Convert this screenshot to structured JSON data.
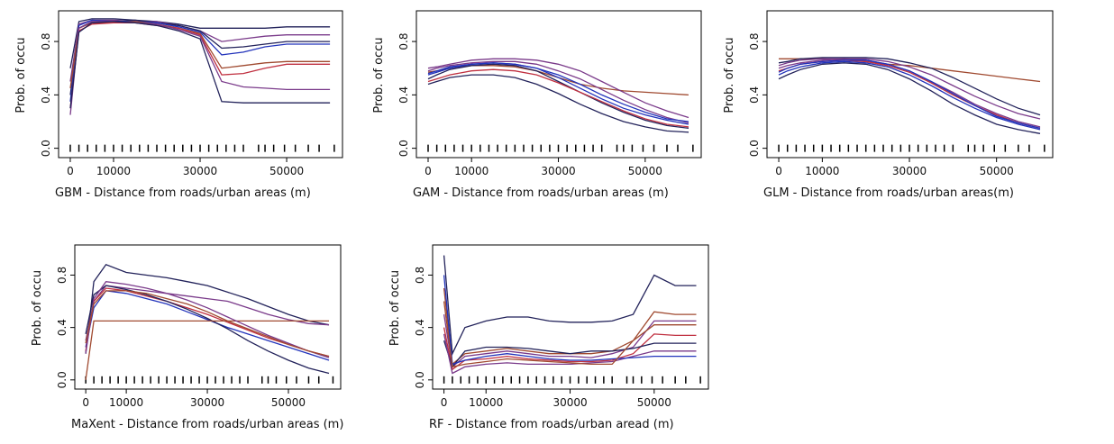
{
  "chart_data": [
    {
      "type": "line",
      "x_label": "GBM - Distance from roads/urban areas (m)",
      "y_label": "Prob. of occu",
      "x": [
        0,
        2000,
        5000,
        10000,
        15000,
        20000,
        25000,
        30000,
        35000,
        40000,
        45000,
        50000,
        55000,
        60000
      ],
      "xlim": [
        -2700,
        62900
      ],
      "ylim": [
        -0.07,
        1.03
      ],
      "xticks": [
        0,
        10000,
        30000,
        50000
      ],
      "yticks": [
        {
          "value": 0,
          "label": "0.0"
        },
        {
          "value": 0.4,
          "label": "0.4"
        },
        {
          "value": 0.8,
          "label": "0.8"
        }
      ],
      "rug": [
        0,
        2000,
        4000,
        6000,
        8000,
        10000,
        12000,
        14000,
        16000,
        18000,
        20000,
        22000,
        24000,
        26000,
        28000,
        30000,
        32000,
        34000,
        36000,
        38000,
        40000,
        43500,
        45000,
        47000,
        49500,
        52000,
        55000,
        57500,
        61000
      ],
      "series": [
        {
          "color": "#22225a",
          "values": [
            0.6,
            0.95,
            0.97,
            0.97,
            0.96,
            0.95,
            0.93,
            0.9,
            0.9,
            0.9,
            0.9,
            0.91,
            0.91,
            0.91
          ]
        },
        {
          "color": "#7a3a8a",
          "values": [
            0.5,
            0.93,
            0.96,
            0.96,
            0.95,
            0.95,
            0.92,
            0.88,
            0.8,
            0.82,
            0.84,
            0.85,
            0.85,
            0.85
          ]
        },
        {
          "color": "#22225a",
          "values": [
            0.4,
            0.9,
            0.95,
            0.95,
            0.96,
            0.94,
            0.92,
            0.88,
            0.75,
            0.76,
            0.78,
            0.8,
            0.8,
            0.8
          ]
        },
        {
          "color": "#2233bb",
          "values": [
            0.35,
            0.92,
            0.96,
            0.95,
            0.95,
            0.94,
            0.91,
            0.87,
            0.7,
            0.72,
            0.76,
            0.78,
            0.78,
            0.78
          ]
        },
        {
          "color": "#a04a30",
          "values": [
            0.45,
            0.9,
            0.94,
            0.94,
            0.95,
            0.93,
            0.9,
            0.86,
            0.6,
            0.62,
            0.64,
            0.65,
            0.65,
            0.65
          ]
        },
        {
          "color": "#c03040",
          "values": [
            0.3,
            0.88,
            0.93,
            0.94,
            0.94,
            0.92,
            0.9,
            0.85,
            0.55,
            0.56,
            0.6,
            0.63,
            0.63,
            0.63
          ]
        },
        {
          "color": "#7a3a8a",
          "values": [
            0.25,
            0.9,
            0.95,
            0.95,
            0.94,
            0.93,
            0.89,
            0.84,
            0.5,
            0.46,
            0.45,
            0.44,
            0.44,
            0.44
          ]
        },
        {
          "color": "#22225a",
          "values": [
            0.3,
            0.87,
            0.94,
            0.95,
            0.94,
            0.92,
            0.88,
            0.82,
            0.35,
            0.34,
            0.34,
            0.34,
            0.34,
            0.34
          ]
        }
      ]
    },
    {
      "type": "line",
      "x_label": "GAM - Distance from roads/urban areas (m)",
      "y_label": "Prob. of occu",
      "x": [
        0,
        2000,
        5000,
        10000,
        15000,
        20000,
        25000,
        30000,
        35000,
        40000,
        45000,
        50000,
        55000,
        60000
      ],
      "xlim": [
        -2700,
        62900
      ],
      "ylim": [
        -0.07,
        1.03
      ],
      "xticks": [
        0,
        10000,
        30000,
        50000
      ],
      "yticks": [
        {
          "value": 0,
          "label": "0.0"
        },
        {
          "value": 0.4,
          "label": "0.4"
        },
        {
          "value": 0.8,
          "label": "0.8"
        }
      ],
      "rug": [
        0,
        2000,
        4000,
        6000,
        8000,
        10000,
        12000,
        14000,
        16000,
        18000,
        20000,
        22000,
        24000,
        26000,
        28000,
        30000,
        32000,
        34000,
        36000,
        38000,
        40000,
        43500,
        45000,
        47000,
        49500,
        52000,
        55000,
        57500,
        61000
      ],
      "series": [
        {
          "color": "#a04a30",
          "values": [
            0.57,
            0.58,
            0.6,
            0.62,
            0.62,
            0.61,
            0.58,
            0.53,
            0.48,
            0.45,
            0.43,
            0.42,
            0.41,
            0.4
          ]
        },
        {
          "color": "#2233bb",
          "values": [
            0.55,
            0.57,
            0.6,
            0.63,
            0.64,
            0.63,
            0.6,
            0.53,
            0.45,
            0.37,
            0.3,
            0.25,
            0.21,
            0.18
          ]
        },
        {
          "color": "#22225a",
          "values": [
            0.52,
            0.55,
            0.59,
            0.62,
            0.63,
            0.62,
            0.58,
            0.5,
            0.42,
            0.34,
            0.27,
            0.21,
            0.17,
            0.15
          ]
        },
        {
          "color": "#7a3a8a",
          "values": [
            0.58,
            0.6,
            0.62,
            0.64,
            0.65,
            0.65,
            0.63,
            0.58,
            0.52,
            0.44,
            0.36,
            0.29,
            0.23,
            0.19
          ]
        },
        {
          "color": "#c03040",
          "values": [
            0.5,
            0.52,
            0.55,
            0.58,
            0.59,
            0.58,
            0.55,
            0.49,
            0.42,
            0.35,
            0.28,
            0.22,
            0.18,
            0.16
          ]
        },
        {
          "color": "#22225a",
          "values": [
            0.48,
            0.5,
            0.53,
            0.55,
            0.55,
            0.53,
            0.48,
            0.41,
            0.33,
            0.26,
            0.2,
            0.16,
            0.13,
            0.12
          ]
        },
        {
          "color": "#7a3a8a",
          "values": [
            0.6,
            0.61,
            0.63,
            0.66,
            0.67,
            0.67,
            0.66,
            0.63,
            0.58,
            0.5,
            0.42,
            0.34,
            0.28,
            0.23
          ]
        },
        {
          "color": "#2233bb",
          "values": [
            0.56,
            0.58,
            0.61,
            0.63,
            0.64,
            0.63,
            0.6,
            0.55,
            0.48,
            0.4,
            0.33,
            0.27,
            0.22,
            0.2
          ]
        }
      ]
    },
    {
      "type": "line",
      "x_label": "GLM - Distance from roads/urban areas(m)",
      "y_label": "Prob. of occu",
      "x": [
        0,
        2000,
        5000,
        10000,
        15000,
        20000,
        25000,
        30000,
        35000,
        40000,
        45000,
        50000,
        55000,
        60000
      ],
      "xlim": [
        -2700,
        62900
      ],
      "ylim": [
        -0.07,
        1.03
      ],
      "xticks": [
        0,
        10000,
        30000,
        50000
      ],
      "yticks": [
        {
          "value": 0,
          "label": "0.0"
        },
        {
          "value": 0.4,
          "label": "0.4"
        },
        {
          "value": 0.8,
          "label": "0.8"
        }
      ],
      "rug": [
        0,
        2000,
        4000,
        6000,
        8000,
        10000,
        12000,
        14000,
        16000,
        18000,
        20000,
        22000,
        24000,
        26000,
        28000,
        30000,
        32000,
        34000,
        36000,
        38000,
        40000,
        43500,
        45000,
        47000,
        49500,
        52000,
        55000,
        57500,
        61000
      ],
      "series": [
        {
          "color": "#a04a30",
          "values": [
            0.67,
            0.67,
            0.67,
            0.67,
            0.66,
            0.65,
            0.63,
            0.62,
            0.6,
            0.58,
            0.56,
            0.54,
            0.52,
            0.5
          ]
        },
        {
          "color": "#7a3a8a",
          "values": [
            0.6,
            0.62,
            0.64,
            0.66,
            0.67,
            0.66,
            0.63,
            0.58,
            0.5,
            0.42,
            0.33,
            0.26,
            0.2,
            0.16
          ]
        },
        {
          "color": "#2233bb",
          "values": [
            0.55,
            0.58,
            0.61,
            0.64,
            0.65,
            0.64,
            0.61,
            0.55,
            0.47,
            0.38,
            0.3,
            0.23,
            0.18,
            0.14
          ]
        },
        {
          "color": "#22225a",
          "values": [
            0.52,
            0.55,
            0.59,
            0.63,
            0.64,
            0.63,
            0.59,
            0.52,
            0.43,
            0.33,
            0.25,
            0.18,
            0.14,
            0.11
          ]
        },
        {
          "color": "#7a3a8a",
          "values": [
            0.62,
            0.64,
            0.66,
            0.67,
            0.67,
            0.67,
            0.65,
            0.61,
            0.55,
            0.47,
            0.39,
            0.32,
            0.26,
            0.22
          ]
        },
        {
          "color": "#c03040",
          "values": [
            0.58,
            0.6,
            0.63,
            0.65,
            0.66,
            0.65,
            0.62,
            0.57,
            0.49,
            0.4,
            0.32,
            0.25,
            0.19,
            0.15
          ]
        },
        {
          "color": "#22225a",
          "values": [
            0.64,
            0.65,
            0.67,
            0.68,
            0.68,
            0.68,
            0.67,
            0.64,
            0.6,
            0.53,
            0.45,
            0.37,
            0.3,
            0.25
          ]
        },
        {
          "color": "#2233bb",
          "values": [
            0.57,
            0.6,
            0.63,
            0.65,
            0.66,
            0.66,
            0.63,
            0.58,
            0.5,
            0.41,
            0.32,
            0.24,
            0.19,
            0.15
          ]
        }
      ]
    },
    {
      "type": "line",
      "x_label": "MaXent - Distance from roads/urban areas (m)",
      "y_label": "Prob. of occu",
      "x": [
        0,
        2000,
        5000,
        10000,
        15000,
        20000,
        25000,
        30000,
        35000,
        40000,
        45000,
        50000,
        55000,
        60000
      ],
      "xlim": [
        -2700,
        62900
      ],
      "ylim": [
        -0.07,
        1.03
      ],
      "xticks": [
        0,
        10000,
        30000,
        50000
      ],
      "yticks": [
        {
          "value": 0,
          "label": "0.0"
        },
        {
          "value": 0.4,
          "label": "0.4"
        },
        {
          "value": 0.8,
          "label": "0.8"
        }
      ],
      "rug": [
        0,
        2000,
        4000,
        6000,
        8000,
        10000,
        12000,
        14000,
        16000,
        18000,
        20000,
        22000,
        24000,
        26000,
        28000,
        30000,
        32000,
        34000,
        36000,
        38000,
        40000,
        43500,
        45000,
        47000,
        49500,
        52000,
        55000,
        57500,
        61000
      ],
      "series": [
        {
          "color": "#22225a",
          "values": [
            0.2,
            0.75,
            0.88,
            0.82,
            0.8,
            0.78,
            0.75,
            0.72,
            0.67,
            0.62,
            0.56,
            0.5,
            0.45,
            0.42
          ]
        },
        {
          "color": "#7a3a8a",
          "values": [
            0.3,
            0.6,
            0.72,
            0.7,
            0.68,
            0.66,
            0.64,
            0.62,
            0.6,
            0.55,
            0.5,
            0.46,
            0.43,
            0.42
          ]
        },
        {
          "color": "#2233bb",
          "values": [
            0.25,
            0.55,
            0.68,
            0.66,
            0.62,
            0.58,
            0.52,
            0.46,
            0.4,
            0.35,
            0.3,
            0.25,
            0.2,
            0.15
          ]
        },
        {
          "color": "#c03040",
          "values": [
            0.22,
            0.6,
            0.7,
            0.68,
            0.64,
            0.6,
            0.55,
            0.5,
            0.44,
            0.38,
            0.32,
            0.27,
            0.22,
            0.18
          ]
        },
        {
          "color": "#22225a",
          "values": [
            0.35,
            0.65,
            0.72,
            0.69,
            0.65,
            0.6,
            0.54,
            0.47,
            0.39,
            0.3,
            0.22,
            0.15,
            0.09,
            0.05
          ]
        },
        {
          "color": "#a04a30",
          "values": [
            0,
            0.45,
            0.45,
            0.45,
            0.45,
            0.45,
            0.45,
            0.45,
            0.45,
            0.45,
            0.45,
            0.45,
            0.45,
            0.45
          ]
        },
        {
          "color": "#7a3a8a",
          "values": [
            0.2,
            0.62,
            0.75,
            0.73,
            0.7,
            0.66,
            0.61,
            0.55,
            0.48,
            0.41,
            0.34,
            0.28,
            0.22,
            0.17
          ]
        },
        {
          "color": "#a04a30",
          "values": [
            0.28,
            0.58,
            0.68,
            0.68,
            0.66,
            0.62,
            0.58,
            0.52,
            0.45,
            0.39,
            0.33,
            0.27,
            0.22,
            0.18
          ]
        }
      ]
    },
    {
      "type": "line",
      "x_label": "RF - Distance from roads/urban aread (m)",
      "y_label": "Prob. of occu",
      "x": [
        0,
        2000,
        5000,
        10000,
        15000,
        20000,
        25000,
        30000,
        35000,
        40000,
        45000,
        50000,
        55000,
        60000
      ],
      "xlim": [
        -2700,
        62900
      ],
      "ylim": [
        -0.07,
        1.03
      ],
      "xticks": [
        0,
        10000,
        30000,
        50000
      ],
      "yticks": [
        {
          "value": 0,
          "label": "0.0"
        },
        {
          "value": 0.4,
          "label": "0.4"
        },
        {
          "value": 0.8,
          "label": "0.8"
        }
      ],
      "rug": [
        0,
        2000,
        4000,
        6000,
        8000,
        10000,
        12000,
        14000,
        16000,
        18000,
        20000,
        22000,
        24000,
        26000,
        28000,
        30000,
        32000,
        34000,
        36000,
        38000,
        40000,
        43500,
        45000,
        47000,
        49500,
        52000,
        55000,
        57500,
        61000
      ],
      "series": [
        {
          "color": "#22225a",
          "values": [
            0.95,
            0.2,
            0.4,
            0.45,
            0.48,
            0.48,
            0.45,
            0.44,
            0.44,
            0.45,
            0.5,
            0.8,
            0.72,
            0.72
          ]
        },
        {
          "color": "#a04a30",
          "values": [
            0.7,
            0.12,
            0.2,
            0.22,
            0.24,
            0.22,
            0.2,
            0.2,
            0.2,
            0.22,
            0.3,
            0.52,
            0.5,
            0.5
          ]
        },
        {
          "color": "#7a3a8a",
          "values": [
            0.5,
            0.1,
            0.18,
            0.2,
            0.22,
            0.2,
            0.18,
            0.18,
            0.17,
            0.2,
            0.25,
            0.45,
            0.45,
            0.45
          ]
        },
        {
          "color": "#c03040",
          "values": [
            0.4,
            0.08,
            0.15,
            0.16,
            0.18,
            0.16,
            0.15,
            0.14,
            0.14,
            0.15,
            0.2,
            0.35,
            0.34,
            0.34
          ]
        },
        {
          "color": "#22225a",
          "values": [
            0.3,
            0.1,
            0.22,
            0.25,
            0.25,
            0.24,
            0.22,
            0.2,
            0.22,
            0.22,
            0.24,
            0.28,
            0.28,
            0.28
          ]
        },
        {
          "color": "#7a3a8a",
          "values": [
            0.35,
            0.05,
            0.1,
            0.12,
            0.13,
            0.12,
            0.12,
            0.12,
            0.13,
            0.14,
            0.18,
            0.22,
            0.22,
            0.22
          ]
        },
        {
          "color": "#2233bb",
          "values": [
            0.8,
            0.12,
            0.15,
            0.18,
            0.2,
            0.18,
            0.16,
            0.15,
            0.15,
            0.16,
            0.17,
            0.18,
            0.18,
            0.18
          ]
        },
        {
          "color": "#a04a30",
          "values": [
            0.6,
            0.1,
            0.12,
            0.14,
            0.16,
            0.15,
            0.14,
            0.13,
            0.12,
            0.12,
            0.3,
            0.42,
            0.42,
            0.42
          ]
        }
      ]
    }
  ]
}
